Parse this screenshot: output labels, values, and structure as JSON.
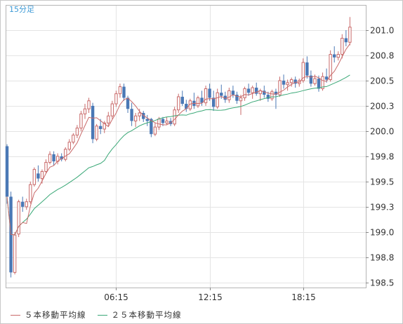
{
  "interval_label": "15分足",
  "chart_data": {
    "type": "candlestick",
    "title": "",
    "xlabel": "",
    "ylabel": "",
    "y_axis_position": "right",
    "ylim": [
      198.45,
      201.25
    ],
    "y_ticks": [
      "201.0",
      "200.8",
      "200.5",
      "200.3",
      "200.0",
      "199.8",
      "199.5",
      "199.3",
      "199.0",
      "198.8",
      "198.5"
    ],
    "y_tick_values": [
      201.0,
      200.75,
      200.5,
      200.25,
      200.0,
      199.75,
      199.5,
      199.25,
      199.0,
      198.75,
      198.5
    ],
    "x_ticks": [
      "06:15",
      "12:15",
      "18:15"
    ],
    "x_tick_index": [
      28,
      52,
      76
    ],
    "grid": true,
    "colors": {
      "up": "#c96a6a",
      "down": "#4a78b5",
      "ma5": "#c96a6a",
      "ma25": "#3aa877",
      "grid": "#e4e4e4"
    },
    "legend": [
      {
        "name": "５本移動平均線",
        "color": "#c96a6a"
      },
      {
        "name": "２５本移動平均線",
        "color": "#3aa877"
      }
    ],
    "legend_position": "bottom-left",
    "candles": [
      [
        199.85,
        199.87,
        199.28,
        199.35
      ],
      [
        199.35,
        199.4,
        198.55,
        198.6
      ],
      [
        198.6,
        199.0,
        198.58,
        198.97
      ],
      [
        198.98,
        199.32,
        198.95,
        199.3
      ],
      [
        199.3,
        199.35,
        199.2,
        199.25
      ],
      [
        199.25,
        199.33,
        199.22,
        199.3
      ],
      [
        199.3,
        199.5,
        199.28,
        199.47
      ],
      [
        199.47,
        199.64,
        199.45,
        199.62
      ],
      [
        199.58,
        199.66,
        199.5,
        199.53
      ],
      [
        199.53,
        199.62,
        199.48,
        199.6
      ],
      [
        199.6,
        199.72,
        199.58,
        199.69
      ],
      [
        199.69,
        199.8,
        199.67,
        199.77
      ],
      [
        199.77,
        199.8,
        199.66,
        199.7
      ],
      [
        199.7,
        199.78,
        199.67,
        199.75
      ],
      [
        199.75,
        199.78,
        199.7,
        199.72
      ],
      [
        199.72,
        199.84,
        199.7,
        199.82
      ],
      [
        199.82,
        199.92,
        199.8,
        199.89
      ],
      [
        199.89,
        199.98,
        199.87,
        199.96
      ],
      [
        199.96,
        200.06,
        199.93,
        200.03
      ],
      [
        200.03,
        200.2,
        200.0,
        200.17
      ],
      [
        200.17,
        200.27,
        200.12,
        200.22
      ],
      [
        200.22,
        200.33,
        200.18,
        200.3
      ],
      [
        200.25,
        200.28,
        199.88,
        199.92
      ],
      [
        199.92,
        200.07,
        199.9,
        200.05
      ],
      [
        200.05,
        200.12,
        199.97,
        200.02
      ],
      [
        200.02,
        200.1,
        199.98,
        200.08
      ],
      [
        200.08,
        200.19,
        200.05,
        200.15
      ],
      [
        200.15,
        200.3,
        200.12,
        200.27
      ],
      [
        200.27,
        200.4,
        200.24,
        200.37
      ],
      [
        200.37,
        200.47,
        200.33,
        200.44
      ],
      [
        200.44,
        200.47,
        200.3,
        200.33
      ],
      [
        200.33,
        200.35,
        200.18,
        200.22
      ],
      [
        200.22,
        200.28,
        200.05,
        200.1
      ],
      [
        200.1,
        200.18,
        200.04,
        200.15
      ],
      [
        200.15,
        200.22,
        200.1,
        200.18
      ],
      [
        200.18,
        200.2,
        200.09,
        200.12
      ],
      [
        200.12,
        200.16,
        200.05,
        200.1
      ],
      [
        200.12,
        200.13,
        199.94,
        199.97
      ],
      [
        199.97,
        200.08,
        199.95,
        200.04
      ],
      [
        200.04,
        200.14,
        200.01,
        200.12
      ],
      [
        200.12,
        200.14,
        200.05,
        200.08
      ],
      [
        200.08,
        200.14,
        200.06,
        200.1
      ],
      [
        200.1,
        200.13,
        200.05,
        200.07
      ],
      [
        200.07,
        200.24,
        200.05,
        200.21
      ],
      [
        200.21,
        200.37,
        200.18,
        200.34
      ],
      [
        200.34,
        200.4,
        200.25,
        200.27
      ],
      [
        200.27,
        200.31,
        200.19,
        200.22
      ],
      [
        200.22,
        200.32,
        200.2,
        200.3
      ],
      [
        200.3,
        200.38,
        200.22,
        200.25
      ],
      [
        200.25,
        200.35,
        200.23,
        200.33
      ],
      [
        200.33,
        200.4,
        200.25,
        200.28
      ],
      [
        200.28,
        200.45,
        200.25,
        200.42
      ],
      [
        200.42,
        200.47,
        200.3,
        200.33
      ],
      [
        200.33,
        200.4,
        200.2,
        200.24
      ],
      [
        200.24,
        200.42,
        200.22,
        200.38
      ],
      [
        200.38,
        200.46,
        200.32,
        200.35
      ],
      [
        200.35,
        200.39,
        200.28,
        200.31
      ],
      [
        200.31,
        200.43,
        200.28,
        200.4
      ],
      [
        200.4,
        200.45,
        200.33,
        200.36
      ],
      [
        200.36,
        200.39,
        200.27,
        200.3
      ],
      [
        200.3,
        200.36,
        200.16,
        200.33
      ],
      [
        200.33,
        200.44,
        200.3,
        200.42
      ],
      [
        200.42,
        200.47,
        200.35,
        200.38
      ],
      [
        200.38,
        200.45,
        200.32,
        200.43
      ],
      [
        200.43,
        200.48,
        200.35,
        200.37
      ],
      [
        200.37,
        200.42,
        200.3,
        200.4
      ],
      [
        200.4,
        200.45,
        200.33,
        200.36
      ],
      [
        200.36,
        200.39,
        200.29,
        200.32
      ],
      [
        200.32,
        200.41,
        200.3,
        200.39
      ],
      [
        200.39,
        200.42,
        200.22,
        200.36
      ],
      [
        200.36,
        200.54,
        200.34,
        200.5
      ],
      [
        200.5,
        200.56,
        200.42,
        200.46
      ],
      [
        200.46,
        200.51,
        200.4,
        200.48
      ],
      [
        200.48,
        200.53,
        200.44,
        200.51
      ],
      [
        200.51,
        200.54,
        200.43,
        200.47
      ],
      [
        200.47,
        200.52,
        200.44,
        200.5
      ],
      [
        200.5,
        200.72,
        200.48,
        200.68
      ],
      [
        200.68,
        200.74,
        200.52,
        200.55
      ],
      [
        200.55,
        200.6,
        200.44,
        200.47
      ],
      [
        200.47,
        200.56,
        200.45,
        200.52
      ],
      [
        200.52,
        200.55,
        200.39,
        200.42
      ],
      [
        200.42,
        200.58,
        200.4,
        200.54
      ],
      [
        200.54,
        200.62,
        200.48,
        200.51
      ],
      [
        200.51,
        200.8,
        200.49,
        200.76
      ],
      [
        200.76,
        200.84,
        200.68,
        200.73
      ],
      [
        200.73,
        200.79,
        200.7,
        200.76
      ],
      [
        200.76,
        200.96,
        200.72,
        200.92
      ],
      [
        200.92,
        201.0,
        200.84,
        200.88
      ],
      [
        200.88,
        201.13,
        200.85,
        201.03
      ]
    ]
  }
}
